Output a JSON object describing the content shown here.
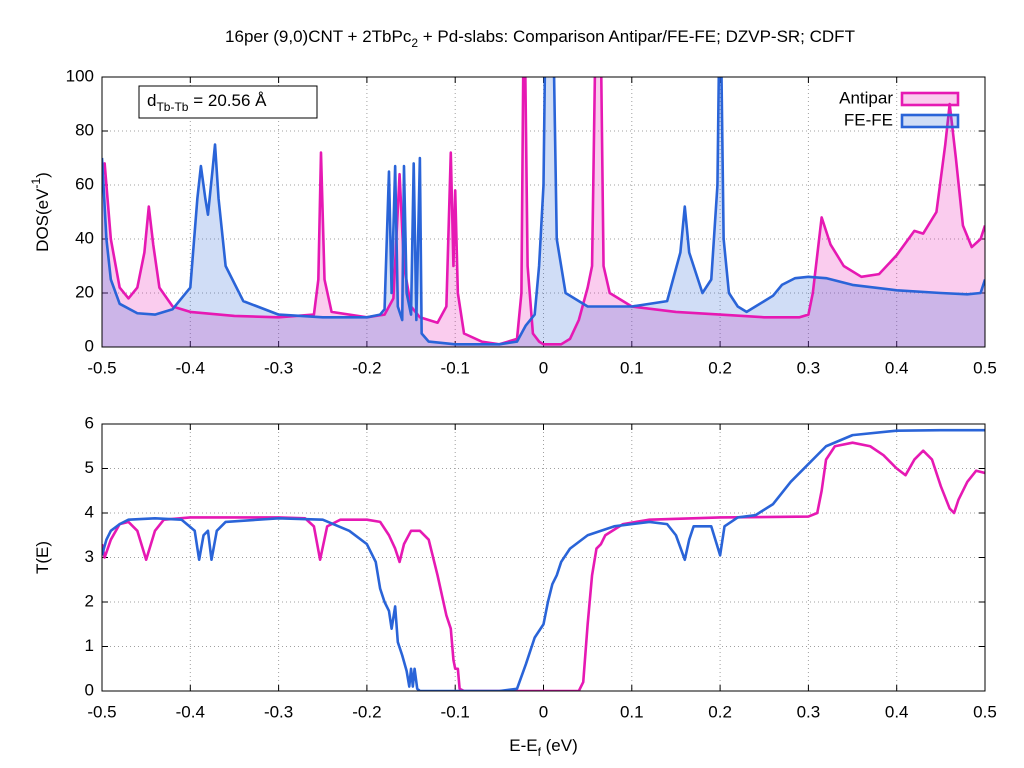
{
  "title": [
    "16per (9,0)CNT + 2TbPc",
    "2",
    " + Pd-slabs: Comparison Antipar/FE-FE; DZVP-SR; CDFT"
  ],
  "chart_data": [
    {
      "type": "line",
      "area": true,
      "fill_opacity": 0.22,
      "y_label": [
        "DOS(eV",
        "-1",
        ")"
      ],
      "annotation": [
        "d",
        "Tb-Tb",
        " = 20.56 Å"
      ],
      "legend": "top right",
      "grid": true,
      "xlim": [
        -0.5,
        0.5
      ],
      "xticks": [
        -0.5,
        -0.4,
        -0.3,
        -0.2,
        -0.1,
        0,
        0.1,
        0.2,
        0.3,
        0.4,
        0.5
      ],
      "ylim": [
        0,
        100
      ],
      "yticks": [
        0,
        20,
        40,
        60,
        80,
        100
      ],
      "series": [
        {
          "name": "Antipar",
          "color": "#e619b3",
          "x": [
            -0.5,
            -0.497,
            -0.49,
            -0.48,
            -0.47,
            -0.46,
            -0.452,
            -0.447,
            -0.442,
            -0.435,
            -0.42,
            -0.4,
            -0.35,
            -0.3,
            -0.26,
            -0.255,
            -0.252,
            -0.248,
            -0.24,
            -0.2,
            -0.18,
            -0.17,
            -0.163,
            -0.158,
            -0.15,
            -0.14,
            -0.12,
            -0.11,
            -0.105,
            -0.102,
            -0.1,
            -0.097,
            -0.09,
            -0.07,
            -0.05,
            -0.03,
            -0.025,
            -0.022,
            -0.018,
            -0.012,
            -0.005,
            0,
            0.02,
            0.03,
            0.04,
            0.05,
            0.055,
            0.06,
            0.064,
            0.068,
            0.075,
            0.1,
            0.15,
            0.2,
            0.25,
            0.29,
            0.3,
            0.305,
            0.315,
            0.325,
            0.34,
            0.36,
            0.38,
            0.4,
            0.42,
            0.43,
            0.445,
            0.455,
            0.46,
            0.467,
            0.475,
            0.485,
            0.495,
            0.5
          ],
          "values": [
            62,
            68,
            40,
            22,
            18,
            22,
            35,
            52,
            38,
            22,
            15,
            13,
            11.5,
            11,
            12,
            25,
            72,
            25,
            13,
            11,
            12,
            18,
            64,
            30,
            15,
            11,
            9,
            15,
            72,
            30,
            58,
            20,
            5,
            2,
            1,
            3,
            20,
            140,
            30,
            5,
            2,
            1,
            1,
            3,
            10,
            22,
            30,
            140,
            140,
            30,
            20,
            15,
            13,
            12,
            11,
            11,
            12,
            20,
            48,
            38,
            30,
            26,
            27,
            34,
            43,
            42,
            50,
            75,
            90,
            70,
            45,
            37,
            40,
            45
          ]
        },
        {
          "name": "FE-FE",
          "color": "#2a64d8",
          "x": [
            -0.5,
            -0.495,
            -0.49,
            -0.48,
            -0.46,
            -0.44,
            -0.42,
            -0.4,
            -0.392,
            -0.388,
            -0.383,
            -0.38,
            -0.375,
            -0.372,
            -0.368,
            -0.36,
            -0.34,
            -0.3,
            -0.25,
            -0.2,
            -0.185,
            -0.18,
            -0.175,
            -0.172,
            -0.168,
            -0.165,
            -0.16,
            -0.158,
            -0.155,
            -0.15,
            -0.147,
            -0.144,
            -0.14,
            -0.138,
            -0.13,
            -0.1,
            -0.05,
            -0.03,
            -0.02,
            -0.01,
            -0.005,
            0,
            0.003,
            0.01,
            0.015,
            0.025,
            0.05,
            0.1,
            0.14,
            0.155,
            0.16,
            0.165,
            0.18,
            0.19,
            0.197,
            0.2,
            0.204,
            0.21,
            0.22,
            0.23,
            0.24,
            0.25,
            0.26,
            0.27,
            0.285,
            0.3,
            0.32,
            0.35,
            0.4,
            0.45,
            0.48,
            0.495,
            0.5
          ],
          "values": [
            70,
            40,
            25,
            16,
            12.5,
            12,
            14,
            22,
            55,
            67,
            55,
            49,
            65,
            75,
            55,
            30,
            17,
            12,
            11,
            11,
            12,
            14,
            65,
            20,
            67,
            15,
            10,
            67,
            20,
            12,
            68,
            10,
            70,
            5,
            2,
            1,
            1,
            2,
            8,
            12,
            30,
            60,
            140,
            140,
            40,
            20,
            15,
            15,
            17,
            35,
            52,
            35,
            20,
            25,
            60,
            140,
            40,
            20,
            15,
            13,
            15,
            17,
            19,
            23,
            25.5,
            26,
            25.5,
            23,
            21,
            20,
            19.5,
            20,
            25
          ]
        }
      ]
    },
    {
      "type": "line",
      "grid": true,
      "y_label": [
        "T(E)"
      ],
      "x_label": [
        "E-E",
        "f",
        " (eV)"
      ],
      "xlim": [
        -0.5,
        0.5
      ],
      "xticks": [
        -0.5,
        -0.4,
        -0.3,
        -0.2,
        -0.1,
        0,
        0.1,
        0.2,
        0.3,
        0.4,
        0.5
      ],
      "ylim": [
        0,
        6
      ],
      "yticks": [
        0,
        1,
        2,
        3,
        4,
        5,
        6
      ],
      "series": [
        {
          "color": "#e619b3",
          "x": [
            -0.5,
            -0.497,
            -0.49,
            -0.48,
            -0.47,
            -0.46,
            -0.45,
            -0.44,
            -0.43,
            -0.4,
            -0.35,
            -0.3,
            -0.27,
            -0.26,
            -0.253,
            -0.245,
            -0.23,
            -0.2,
            -0.185,
            -0.175,
            -0.168,
            -0.163,
            -0.158,
            -0.15,
            -0.14,
            -0.13,
            -0.12,
            -0.11,
            -0.105,
            -0.102,
            -0.1,
            -0.097,
            -0.095,
            -0.09,
            -0.05,
            0,
            0.04,
            0.045,
            0.05,
            0.055,
            0.06,
            0.065,
            0.07,
            0.09,
            0.12,
            0.2,
            0.3,
            0.31,
            0.315,
            0.32,
            0.33,
            0.35,
            0.37,
            0.385,
            0.4,
            0.41,
            0.42,
            0.43,
            0.44,
            0.45,
            0.46,
            0.465,
            0.47,
            0.48,
            0.49,
            0.5
          ],
          "values": [
            3.3,
            3.0,
            3.4,
            3.75,
            3.8,
            3.6,
            2.95,
            3.6,
            3.85,
            3.9,
            3.9,
            3.9,
            3.88,
            3.7,
            2.95,
            3.7,
            3.85,
            3.85,
            3.8,
            3.5,
            3.2,
            2.9,
            3.3,
            3.6,
            3.6,
            3.4,
            2.6,
            1.7,
            1.4,
            0.7,
            0.5,
            0.5,
            0.05,
            0,
            0,
            0,
            0,
            0.2,
            1.5,
            2.6,
            3.2,
            3.3,
            3.5,
            3.75,
            3.85,
            3.9,
            3.92,
            4.0,
            4.5,
            5.2,
            5.5,
            5.58,
            5.5,
            5.3,
            5.0,
            4.85,
            5.2,
            5.4,
            5.2,
            4.6,
            4.1,
            4.0,
            4.3,
            4.7,
            4.95,
            4.9
          ]
        },
        {
          "color": "#2a64d8",
          "x": [
            -0.5,
            -0.495,
            -0.49,
            -0.48,
            -0.47,
            -0.44,
            -0.41,
            -0.395,
            -0.39,
            -0.385,
            -0.38,
            -0.376,
            -0.37,
            -0.36,
            -0.3,
            -0.25,
            -0.22,
            -0.2,
            -0.19,
            -0.185,
            -0.18,
            -0.175,
            -0.172,
            -0.168,
            -0.165,
            -0.16,
            -0.155,
            -0.152,
            -0.15,
            -0.148,
            -0.146,
            -0.143,
            -0.14,
            -0.05,
            -0.03,
            -0.02,
            -0.01,
            0,
            0.005,
            0.01,
            0.015,
            0.02,
            0.03,
            0.05,
            0.08,
            0.12,
            0.14,
            0.15,
            0.16,
            0.165,
            0.17,
            0.19,
            0.2,
            0.205,
            0.22,
            0.24,
            0.26,
            0.28,
            0.3,
            0.32,
            0.35,
            0.4,
            0.45,
            0.5
          ],
          "values": [
            3.05,
            3.4,
            3.6,
            3.75,
            3.85,
            3.88,
            3.85,
            3.6,
            2.95,
            3.5,
            3.6,
            2.95,
            3.6,
            3.8,
            3.88,
            3.85,
            3.6,
            3.3,
            2.9,
            2.3,
            2.0,
            1.8,
            1.4,
            1.9,
            1.1,
            0.8,
            0.45,
            0.1,
            0.5,
            0.1,
            0.5,
            0.05,
            0,
            0,
            0.05,
            0.6,
            1.2,
            1.5,
            2.0,
            2.4,
            2.6,
            2.9,
            3.2,
            3.5,
            3.7,
            3.8,
            3.75,
            3.5,
            2.95,
            3.4,
            3.7,
            3.7,
            3.05,
            3.7,
            3.9,
            3.95,
            4.2,
            4.7,
            5.1,
            5.5,
            5.75,
            5.85,
            5.86,
            5.86
          ]
        }
      ]
    }
  ]
}
